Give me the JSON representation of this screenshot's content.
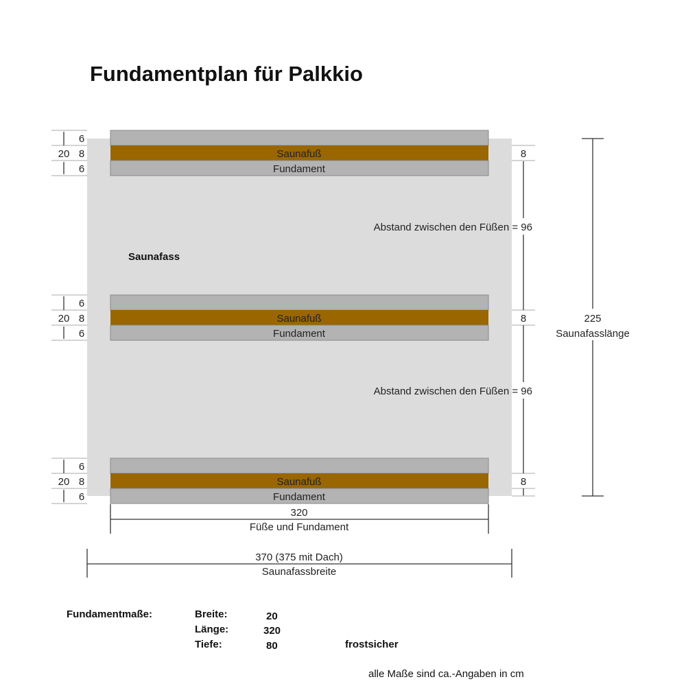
{
  "title": "Fundamentplan für Palkkio",
  "barrel_label": "Saunafass",
  "foot_label": "Saunafuß",
  "foundation_label": "Fundament",
  "rows_dims": {
    "total": "20",
    "top": "6",
    "middle": "8",
    "bottom": "6"
  },
  "foot_width_dim": "8",
  "spacing_label": "Abstand zwischen den Füßen = 96",
  "length_value": "225",
  "length_label": "Saunafasslänge",
  "feet_width_value": "320",
  "feet_width_label": "Füße und Fundament",
  "barrel_width_value": "370 (375 mit Dach)",
  "barrel_width_label": "Saunafassbreite",
  "specs": {
    "heading": "Fundamentmaße:",
    "rows": [
      {
        "label": "Breite:",
        "value": "20"
      },
      {
        "label": "Länge:",
        "value": "320"
      },
      {
        "label": "Tiefe:",
        "value": "80"
      }
    ],
    "note": "frostsicher"
  },
  "footer_note": "alle Maße sind ca.-Angaben in cm",
  "colors": {
    "barrel": "#dcdcdc",
    "foot": "#996600",
    "foundation": "#b3b3b3"
  }
}
